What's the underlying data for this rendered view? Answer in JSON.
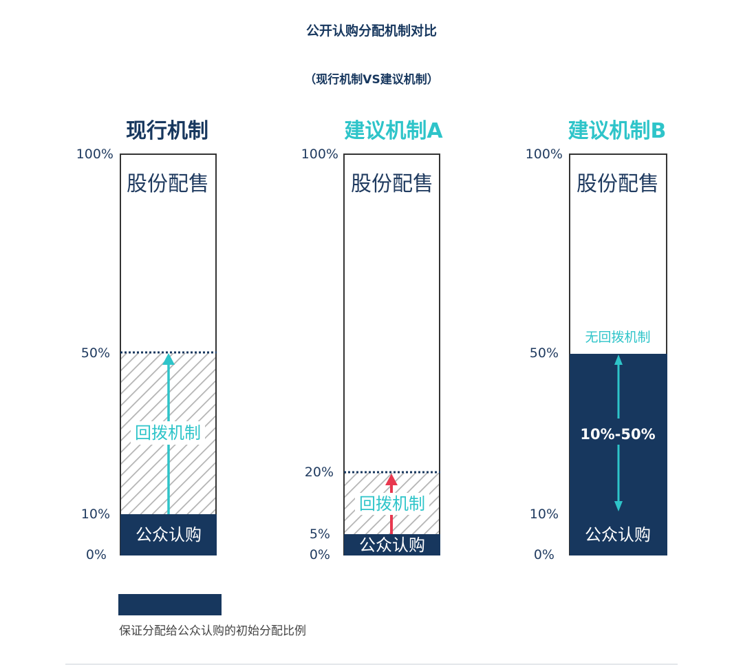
{
  "title": "公开认购分配机制对比",
  "subtitle": "（现行机制VS建议机制）",
  "colors": {
    "navy": "#17375e",
    "teal": "#2ec4c9",
    "red": "#e8384f",
    "hatch": "#b3b3b3",
    "text": "#1f3a5f"
  },
  "columns": [
    {
      "title": "现行机制",
      "title_color": "#17375e",
      "ticks": [
        "100%",
        "50%",
        "10%",
        "0%"
      ],
      "top_label": "股份配售",
      "clawback_label": "回拨机制",
      "bottom_label": "公众认购",
      "base_pct": 10,
      "max_pct": 50,
      "arrow": "teal"
    },
    {
      "title": "建议机制A",
      "title_color": "#2ec4c9",
      "ticks": [
        "100%",
        "20%",
        "5%",
        "0%"
      ],
      "top_label": "股份配售",
      "clawback_label": "回拨机制",
      "bottom_label": "公众认购",
      "base_pct": 5,
      "max_pct": 20,
      "arrow": "red"
    },
    {
      "title": "建议机制B",
      "title_color": "#2ec4c9",
      "ticks": [
        "100%",
        "50%",
        "10%",
        "0%"
      ],
      "top_label": "股份配售",
      "no_clawback_label": "无回拨机制",
      "range_label": "10%-50%",
      "bottom_label": "公众认购",
      "min_pct": 10,
      "max_pct": 50
    }
  ],
  "legend": {
    "text": "保证分配给公众认购的初始分配比例"
  }
}
